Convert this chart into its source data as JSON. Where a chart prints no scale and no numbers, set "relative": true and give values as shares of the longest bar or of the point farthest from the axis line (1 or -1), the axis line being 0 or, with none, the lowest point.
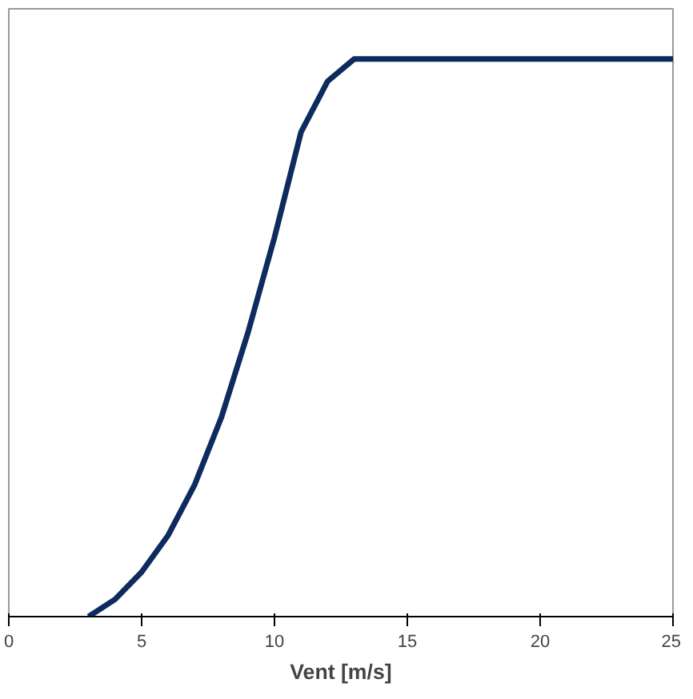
{
  "chart_data": {
    "type": "line",
    "relative": true,
    "xlabel": "Vent [m/s]",
    "x": [
      3,
      4,
      5,
      6,
      7,
      8,
      9,
      10,
      11,
      12,
      13,
      25
    ],
    "series": [
      {
        "color": "#0d2b5e",
        "values": [
          0,
          0.031,
          0.08,
          0.146,
          0.237,
          0.357,
          0.509,
          0.68,
          0.869,
          0.96,
          1,
          1
        ]
      }
    ],
    "xlim": [
      0,
      25
    ],
    "xticks": [
      0,
      5,
      10,
      15,
      20,
      25
    ],
    "marker": "none",
    "line_style": "solid"
  }
}
